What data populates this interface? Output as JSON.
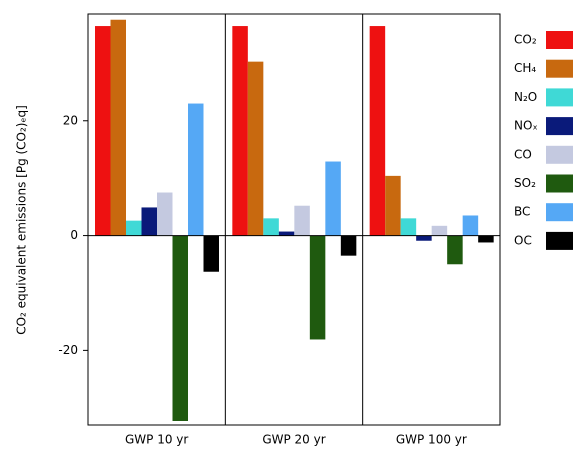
{
  "chart_data": {
    "type": "bar",
    "y_label": "CO₂ equivalent emissions [Pg (CO₂)ₑq]",
    "categories": [
      "GWP 10 yr",
      "GWP 20 yr",
      "GWP 100 yr"
    ],
    "series": [
      {
        "name": "CO₂",
        "color": "#ee1111",
        "values": [
          36.5,
          36.5,
          36.5
        ]
      },
      {
        "name": "CH₄",
        "color": "#c8690f",
        "values": [
          37.6,
          30.3,
          10.4
        ]
      },
      {
        "name": "N₂O",
        "color": "#3fd9d6",
        "values": [
          2.6,
          3.0,
          3.0
        ]
      },
      {
        "name": "NOₓ",
        "color": "#0a1a7a",
        "values": [
          4.9,
          0.7,
          -0.9
        ]
      },
      {
        "name": "CO",
        "color": "#c4c9e0",
        "values": [
          7.5,
          5.2,
          1.7
        ]
      },
      {
        "name": "SO₂",
        "color": "#1f5a0f",
        "values": [
          -32.3,
          -18.1,
          -5.0
        ]
      },
      {
        "name": "BC",
        "color": "#55a8f5",
        "values": [
          23,
          12.9,
          3.5
        ]
      },
      {
        "name": "OC",
        "color": "#000000",
        "values": [
          -6.3,
          -3.5,
          -1.2
        ]
      }
    ],
    "ylim": [
      -33,
      38.6
    ],
    "yticks": [
      -20,
      0,
      20
    ]
  }
}
